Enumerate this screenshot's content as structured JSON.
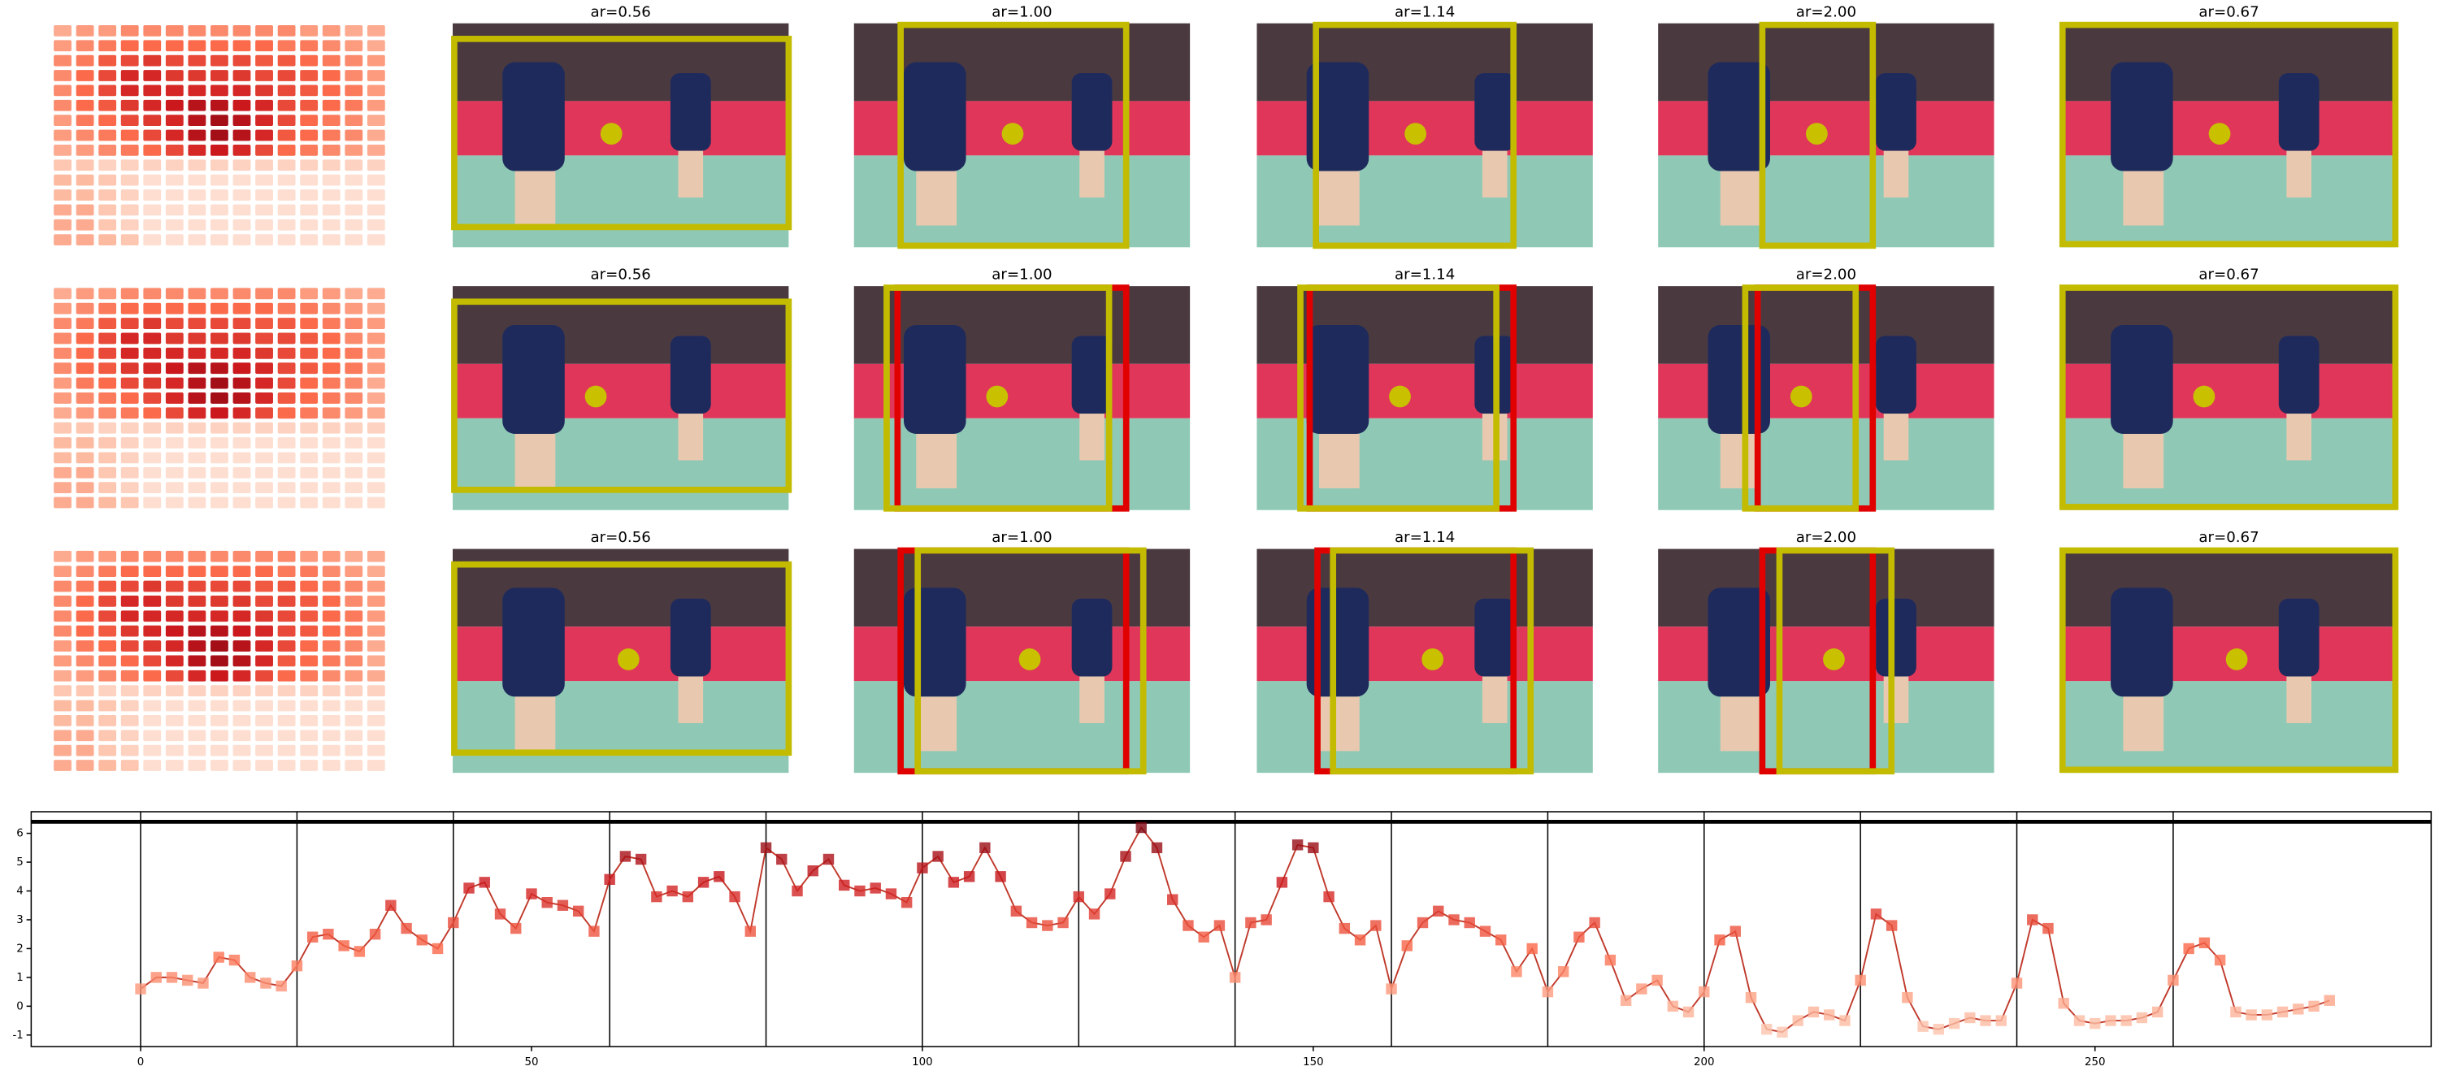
{
  "panels": {
    "rows": [
      {
        "titles": [
          "ar=0.56",
          "ar=1.00",
          "ar=1.14",
          "ar=2.00",
          "ar=0.67"
        ]
      },
      {
        "titles": [
          "ar=0.56",
          "ar=1.00",
          "ar=1.14",
          "ar=2.00",
          "ar=0.67"
        ]
      },
      {
        "titles": [
          "ar=0.56",
          "ar=1.00",
          "ar=1.14",
          "ar=2.00",
          "ar=0.67"
        ]
      }
    ]
  },
  "heatmap": [
    [
      0.3,
      0.35,
      0.35,
      0.4,
      0.4,
      0.4,
      0.4,
      0.4,
      0.4,
      0.4,
      0.4,
      0.35,
      0.35,
      0.3,
      0.3
    ],
    [
      0.35,
      0.4,
      0.45,
      0.5,
      0.5,
      0.5,
      0.5,
      0.5,
      0.5,
      0.5,
      0.45,
      0.45,
      0.4,
      0.35,
      0.3
    ],
    [
      0.4,
      0.45,
      0.55,
      0.6,
      0.65,
      0.6,
      0.6,
      0.6,
      0.6,
      0.55,
      0.55,
      0.5,
      0.45,
      0.4,
      0.35
    ],
    [
      0.4,
      0.5,
      0.6,
      0.7,
      0.7,
      0.65,
      0.65,
      0.65,
      0.65,
      0.6,
      0.6,
      0.55,
      0.5,
      0.4,
      0.35
    ],
    [
      0.4,
      0.5,
      0.6,
      0.7,
      0.7,
      0.7,
      0.7,
      0.7,
      0.7,
      0.65,
      0.6,
      0.55,
      0.5,
      0.45,
      0.35
    ],
    [
      0.4,
      0.5,
      0.55,
      0.65,
      0.7,
      0.75,
      0.8,
      0.8,
      0.75,
      0.7,
      0.6,
      0.55,
      0.5,
      0.45,
      0.35
    ],
    [
      0.35,
      0.45,
      0.5,
      0.6,
      0.65,
      0.7,
      0.8,
      0.85,
      0.8,
      0.7,
      0.6,
      0.5,
      0.45,
      0.4,
      0.3
    ],
    [
      0.35,
      0.4,
      0.45,
      0.5,
      0.6,
      0.7,
      0.8,
      0.85,
      0.8,
      0.7,
      0.55,
      0.5,
      0.45,
      0.4,
      0.3
    ],
    [
      0.3,
      0.35,
      0.4,
      0.45,
      0.5,
      0.6,
      0.7,
      0.75,
      0.7,
      0.6,
      0.5,
      0.45,
      0.4,
      0.35,
      0.3
    ],
    [
      0.2,
      0.2,
      0.15,
      0.15,
      0.15,
      0.15,
      0.15,
      0.15,
      0.15,
      0.15,
      0.15,
      0.15,
      0.15,
      0.15,
      0.15
    ],
    [
      0.25,
      0.25,
      0.2,
      0.15,
      0.1,
      0.1,
      0.1,
      0.1,
      0.1,
      0.1,
      0.1,
      0.1,
      0.1,
      0.1,
      0.1
    ],
    [
      0.25,
      0.25,
      0.2,
      0.15,
      0.1,
      0.1,
      0.1,
      0.1,
      0.1,
      0.1,
      0.1,
      0.1,
      0.1,
      0.1,
      0.1
    ],
    [
      0.3,
      0.3,
      0.2,
      0.15,
      0.1,
      0.1,
      0.1,
      0.1,
      0.1,
      0.1,
      0.1,
      0.1,
      0.1,
      0.1,
      0.1
    ],
    [
      0.3,
      0.3,
      0.2,
      0.15,
      0.1,
      0.1,
      0.1,
      0.1,
      0.1,
      0.1,
      0.1,
      0.1,
      0.1,
      0.1,
      0.1
    ],
    [
      0.3,
      0.3,
      0.25,
      0.2,
      0.1,
      0.1,
      0.1,
      0.1,
      0.1,
      0.1,
      0.1,
      0.1,
      0.1,
      0.1,
      0.1
    ]
  ],
  "chart_data": {
    "type": "line",
    "color": "#c0392b",
    "x": [
      0,
      2,
      4,
      6,
      8,
      10,
      12,
      14,
      16,
      18,
      20,
      22,
      24,
      26,
      28,
      30,
      32,
      34,
      36,
      38,
      40,
      42,
      44,
      46,
      48,
      50,
      52,
      54,
      56,
      58,
      60,
      62,
      64,
      66,
      68,
      70,
      72,
      74,
      76,
      78,
      80,
      82,
      84,
      86,
      88,
      90,
      92,
      94,
      96,
      98,
      100,
      102,
      104,
      106,
      108,
      110,
      112,
      114,
      116,
      118,
      120,
      122,
      124,
      126,
      128,
      130,
      132,
      134,
      136,
      138,
      140,
      142,
      144,
      146,
      148,
      150,
      152,
      154,
      156,
      158,
      160,
      162,
      164,
      166,
      168,
      170,
      172,
      174,
      176,
      178,
      180,
      182,
      184,
      186,
      188,
      190,
      192,
      194,
      196,
      198,
      200,
      202,
      204,
      206,
      208,
      210,
      212,
      214,
      216,
      218,
      220,
      222,
      224,
      226,
      228,
      230,
      232,
      234,
      236,
      238,
      240,
      242,
      244,
      246,
      248,
      250,
      252,
      254,
      256,
      258,
      260,
      262,
      264,
      266,
      268,
      270,
      272,
      274,
      276,
      278,
      280
    ],
    "values": [
      0.6,
      1.0,
      1.0,
      0.9,
      0.8,
      1.7,
      1.6,
      1.0,
      0.8,
      0.7,
      1.4,
      2.4,
      2.5,
      2.1,
      1.9,
      2.5,
      3.5,
      2.7,
      2.3,
      2.0,
      2.9,
      4.1,
      4.3,
      3.2,
      2.7,
      3.9,
      3.6,
      3.5,
      3.3,
      2.6,
      4.4,
      5.2,
      5.1,
      3.8,
      4.0,
      3.8,
      4.3,
      4.5,
      3.8,
      2.6,
      5.5,
      5.1,
      4.0,
      4.7,
      5.1,
      4.2,
      4.0,
      4.1,
      3.9,
      3.6,
      4.8,
      5.2,
      4.3,
      4.5,
      5.5,
      4.5,
      3.3,
      2.9,
      2.8,
      2.9,
      3.8,
      3.2,
      3.9,
      5.2,
      6.2,
      5.5,
      3.7,
      2.8,
      2.4,
      2.8,
      1.0,
      2.9,
      3.0,
      4.3,
      5.6,
      5.5,
      3.8,
      2.7,
      2.3,
      2.8,
      0.6,
      2.1,
      2.9,
      3.3,
      3.0,
      2.9,
      2.6,
      2.3,
      1.2,
      2.0,
      0.5,
      1.2,
      2.4,
      2.9,
      1.6,
      0.2,
      0.6,
      0.9,
      0.0,
      -0.2,
      0.5,
      2.3,
      2.6,
      0.3,
      -0.8,
      -0.9,
      -0.5,
      -0.2,
      -0.3,
      -0.5,
      0.9,
      3.2,
      2.8,
      0.3,
      -0.7,
      -0.8,
      -0.6,
      -0.4,
      -0.5,
      -0.5,
      0.8,
      3.0,
      2.7,
      0.1,
      -0.5,
      -0.6,
      -0.5,
      -0.5,
      -0.4,
      -0.2,
      0.9,
      2.0,
      2.2,
      1.6,
      -0.2,
      -0.3,
      -0.3,
      -0.2,
      -0.1,
      0.0,
      0.2
    ],
    "xlim": [
      -14,
      293
    ],
    "ylim": [
      -1.4,
      6.75
    ],
    "xticks": [
      0,
      50,
      100,
      150,
      200,
      250
    ],
    "yticks": [
      -1,
      0,
      1,
      2,
      3,
      4,
      5,
      6
    ],
    "vlines": [
      0,
      20,
      40,
      60,
      80,
      100,
      120,
      140,
      160,
      180,
      200,
      220,
      240,
      260
    ],
    "hline": 6.4
  }
}
